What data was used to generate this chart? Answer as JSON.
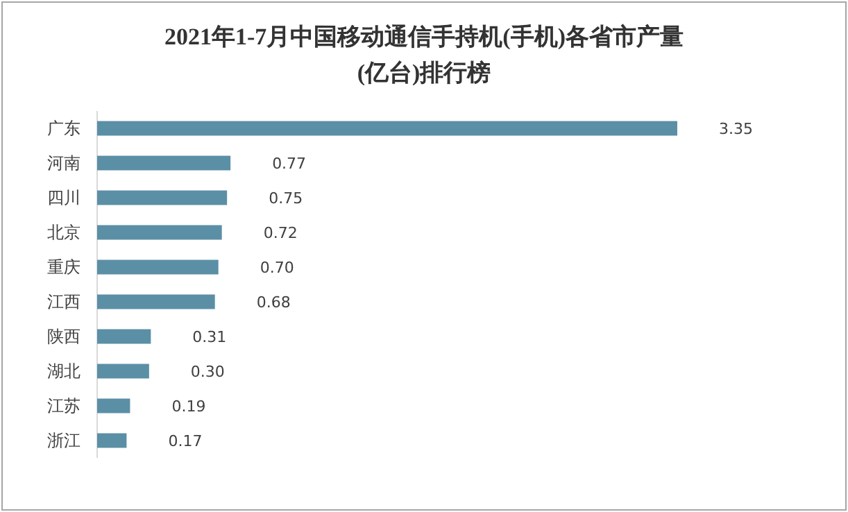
{
  "chart_data": {
    "type": "bar",
    "orientation": "horizontal",
    "title": "2021年1-7月中国移动通信手持机(手机)各省市产量\n(亿台)排行榜",
    "categories": [
      "广东",
      "河南",
      "四川",
      "北京",
      "重庆",
      "江西",
      "陕西",
      "湖北",
      "江苏",
      "浙江"
    ],
    "values": [
      3.35,
      0.77,
      0.75,
      0.72,
      0.7,
      0.68,
      0.31,
      0.3,
      0.19,
      0.17
    ],
    "value_labels": [
      "3.35",
      "0.77",
      "0.75",
      "0.72",
      "0.70",
      "0.68",
      "0.31",
      "0.30",
      "0.19",
      "0.17"
    ],
    "color": "#5b8fa6"
  }
}
